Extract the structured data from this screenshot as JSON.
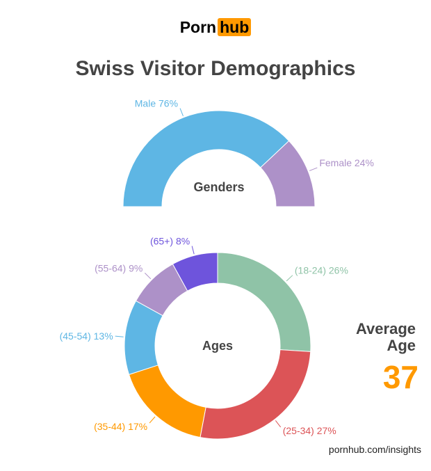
{
  "logo": {
    "part1": "Porn",
    "part2": "hub"
  },
  "title": "Swiss Visitor Demographics",
  "average_age": {
    "label_line1": "Average",
    "label_line2": "Age",
    "value": "37"
  },
  "source": "pornhub.com/insights",
  "chart_data": [
    {
      "type": "pie",
      "subtype": "half-donut",
      "center_label": "Genders",
      "categories": [
        "Male",
        "Female"
      ],
      "values": [
        76,
        24
      ],
      "labels": [
        "Male 76%",
        "Female 24%"
      ],
      "colors": [
        "#5eb6e4",
        "#ad91c8"
      ]
    },
    {
      "type": "pie",
      "subtype": "donut",
      "center_label": "Ages",
      "categories": [
        "(18-24)",
        "(25-34)",
        "(35-44)",
        "(45-54)",
        "(55-64)",
        "(65+)"
      ],
      "values": [
        26,
        27,
        17,
        13,
        9,
        8
      ],
      "labels": [
        "(18-24) 26%",
        "(25-34) 27%",
        "(35-44) 17%",
        "(45-54) 13%",
        "(55-64) 9%",
        "(65+) 8%"
      ],
      "colors": [
        "#8fc3a7",
        "#dc5457",
        "#ff9900",
        "#5eb6e4",
        "#ad91c8",
        "#6e54dc"
      ]
    }
  ]
}
